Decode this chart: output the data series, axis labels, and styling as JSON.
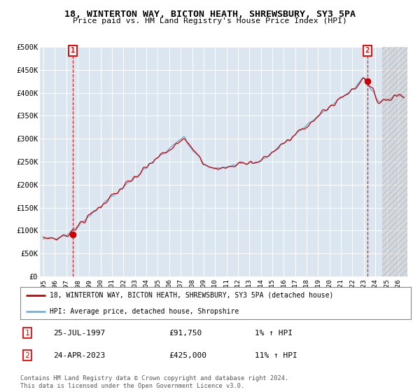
{
  "title_line1": "18, WINTERTON WAY, BICTON HEATH, SHREWSBURY, SY3 5PA",
  "title_line2": "Price paid vs. HM Land Registry's House Price Index (HPI)",
  "ylim": [
    0,
    500000
  ],
  "yticks": [
    0,
    50000,
    100000,
    150000,
    200000,
    250000,
    300000,
    350000,
    400000,
    450000,
    500000
  ],
  "ytick_labels": [
    "£0",
    "£50K",
    "£100K",
    "£150K",
    "£200K",
    "£250K",
    "£300K",
    "£350K",
    "£400K",
    "£450K",
    "£500K"
  ],
  "xlim_start": 1994.7,
  "xlim_end": 2026.8,
  "xticks": [
    1995,
    1996,
    1997,
    1998,
    1999,
    2000,
    2001,
    2002,
    2003,
    2004,
    2005,
    2006,
    2007,
    2008,
    2009,
    2010,
    2011,
    2012,
    2013,
    2014,
    2015,
    2016,
    2017,
    2018,
    2019,
    2020,
    2021,
    2022,
    2023,
    2024,
    2025,
    2026
  ],
  "bg_color": "#dce6f1",
  "hpi_line_color": "#7bafd4",
  "price_line_color": "#cc0000",
  "marker_color": "#cc0000",
  "point1_x": 1997.56,
  "point1_y": 91750,
  "point2_x": 2023.31,
  "point2_y": 425000,
  "vline_color": "#dd0000",
  "hatch_start": 2024.58,
  "legend_label1": "18, WINTERTON WAY, BICTON HEATH, SHREWSBURY, SY3 5PA (detached house)",
  "legend_label2": "HPI: Average price, detached house, Shropshire",
  "note1_date": "25-JUL-1997",
  "note1_price": "£91,750",
  "note1_hpi": "1% ↑ HPI",
  "note2_date": "24-APR-2023",
  "note2_price": "£425,000",
  "note2_hpi": "11% ↑ HPI",
  "footer": "Contains HM Land Registry data © Crown copyright and database right 2024.\nThis data is licensed under the Open Government Licence v3.0."
}
